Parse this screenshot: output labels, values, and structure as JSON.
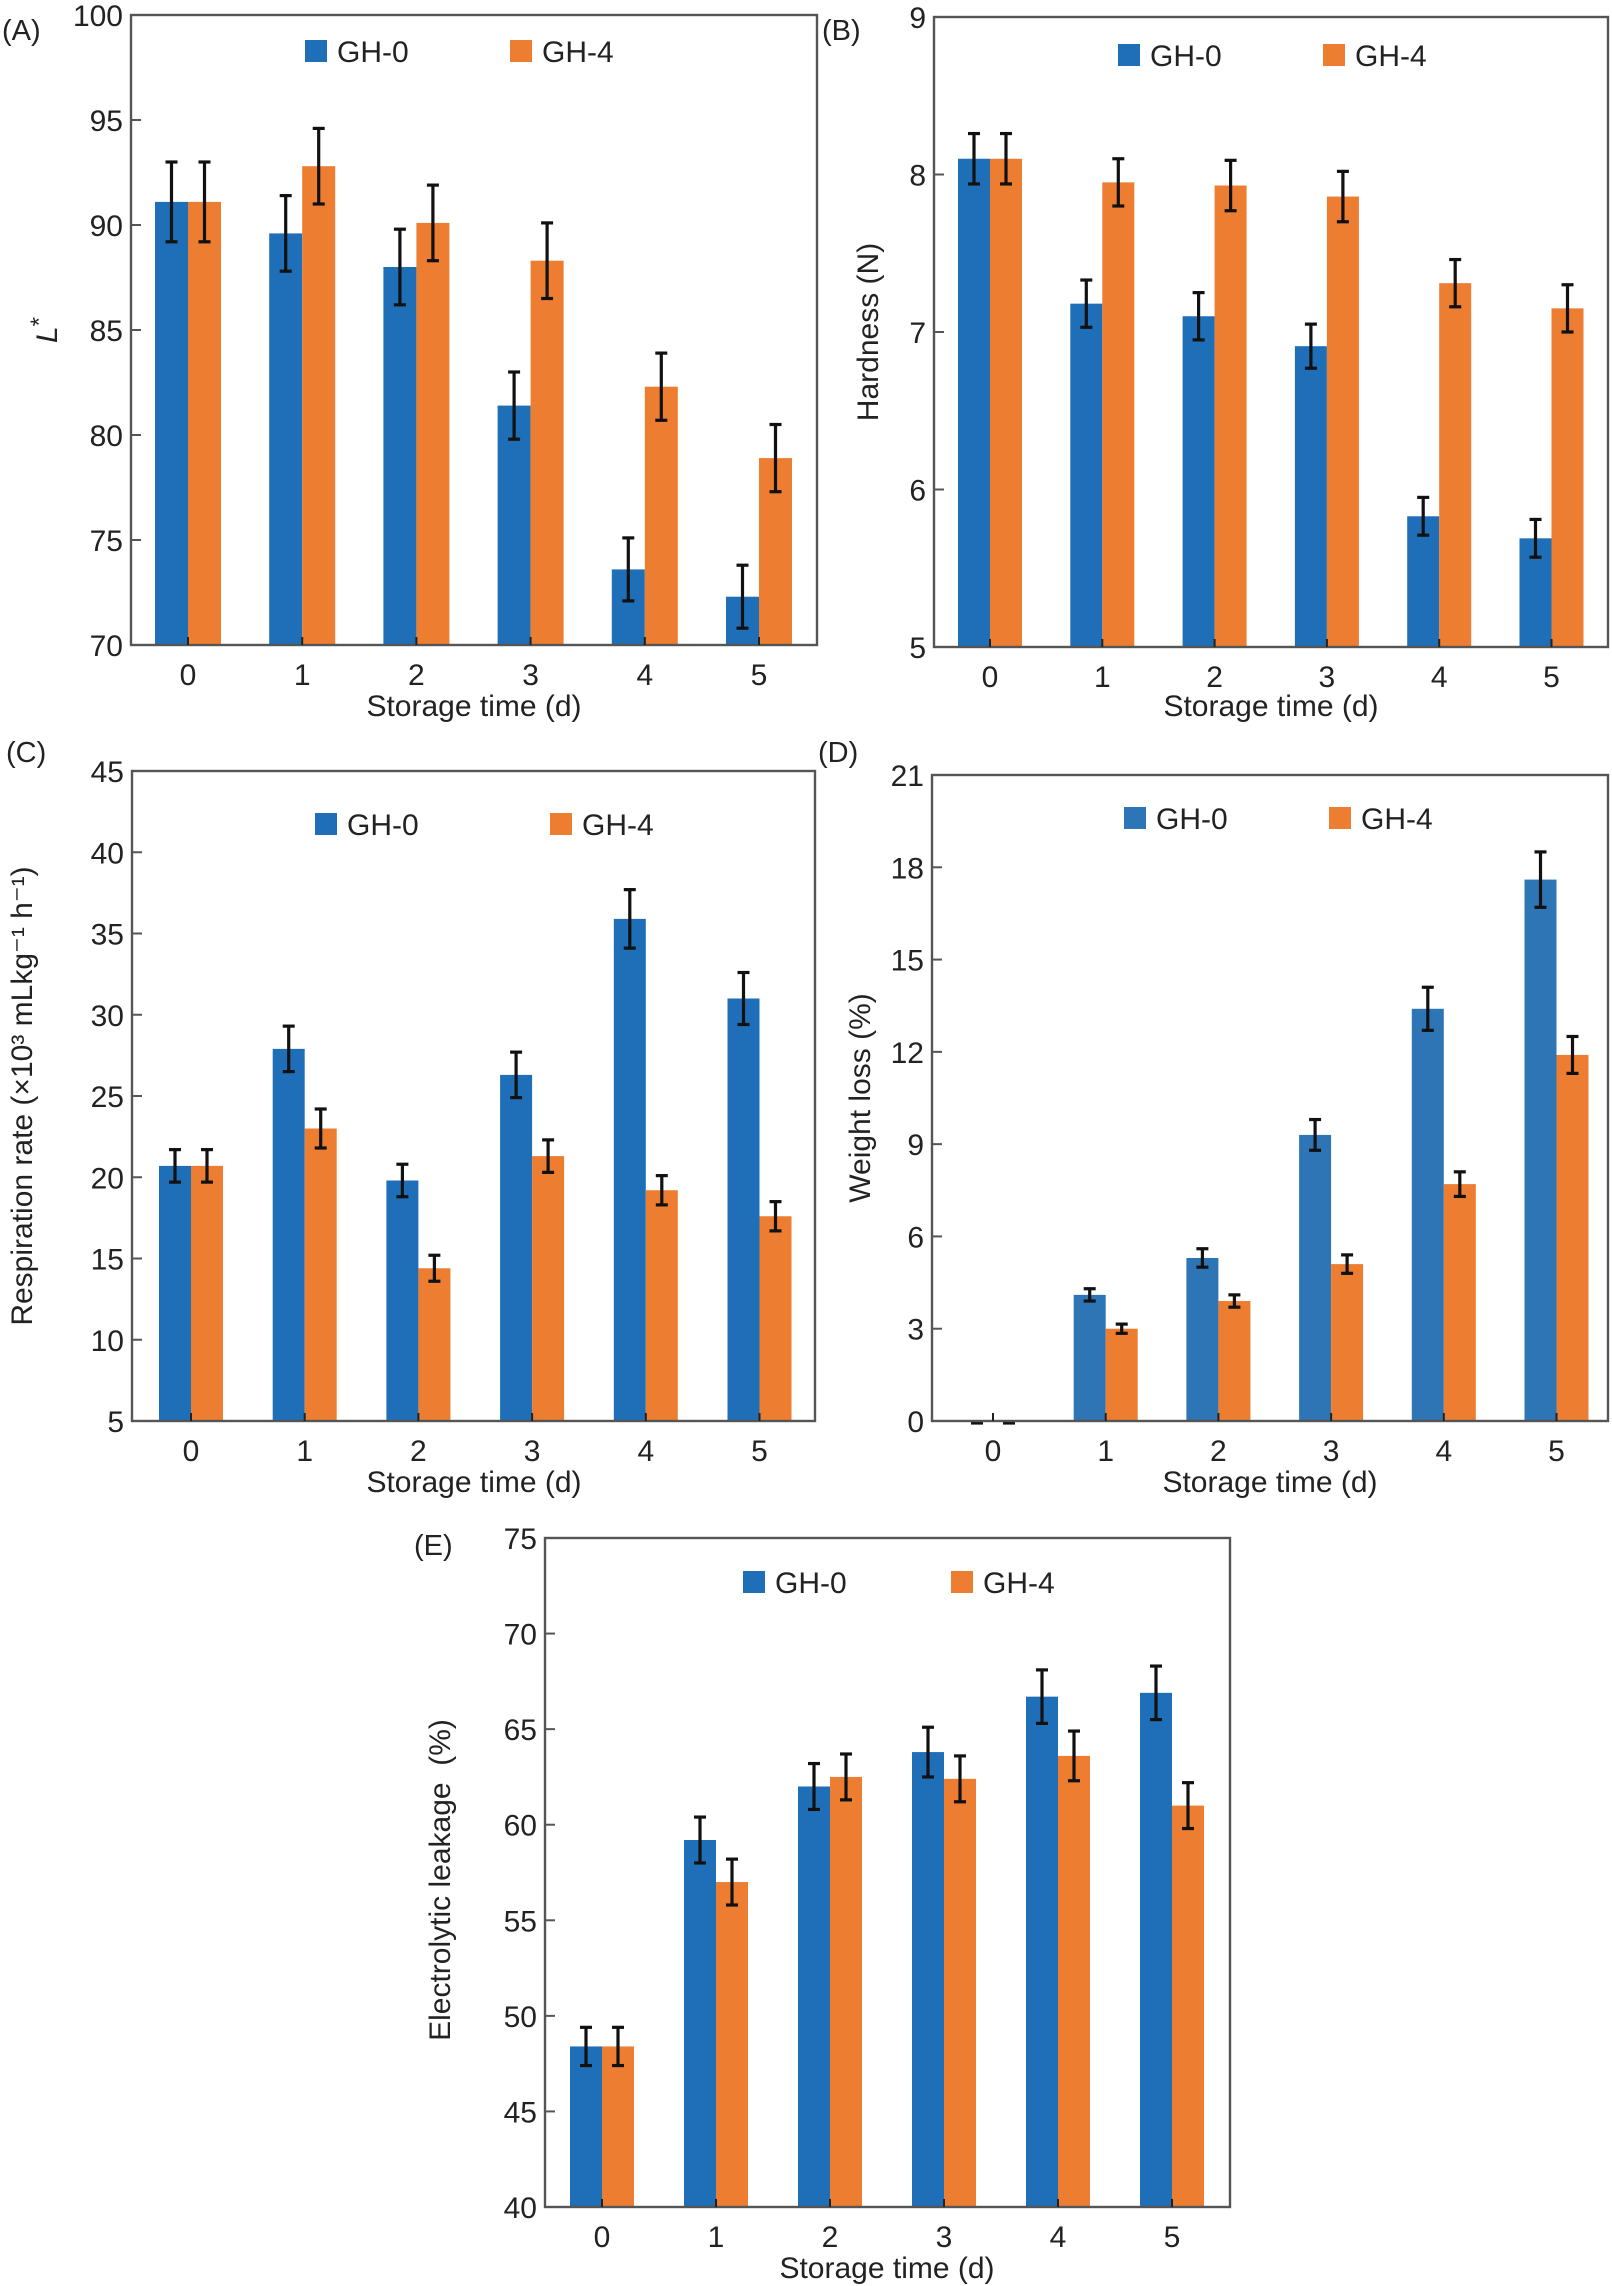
{
  "figure": {
    "colors": {
      "GH-0": "#1f6fb8",
      "GH-0_panelD": "#2e75b6",
      "GH-4": "#ed7d31",
      "frame": "#555555",
      "error_bar": "#111111"
    }
  },
  "chart_data": [
    {
      "panel": "(A)",
      "type": "bar",
      "title": "",
      "xlabel": "Storage time (d)",
      "ylabel": "L*",
      "ylabel_italic_part": "L",
      "ylabel_rest": "*",
      "categories": [
        "0",
        "1",
        "2",
        "3",
        "4",
        "5"
      ],
      "ylim": [
        70,
        100
      ],
      "yticks": [
        70,
        75,
        80,
        85,
        90,
        95,
        100
      ],
      "legend": {
        "placement": "top-center",
        "entries": [
          "GH-0",
          "GH-4"
        ]
      },
      "grid": false,
      "series": [
        {
          "name": "GH-0",
          "values": [
            91.1,
            89.6,
            88.0,
            81.4,
            73.6,
            72.3
          ],
          "errors": [
            1.9,
            1.8,
            1.8,
            1.6,
            1.5,
            1.5
          ]
        },
        {
          "name": "GH-4",
          "values": [
            91.1,
            92.8,
            90.1,
            88.3,
            82.3,
            78.9
          ],
          "errors": [
            1.9,
            1.8,
            1.8,
            1.8,
            1.6,
            1.6
          ]
        }
      ]
    },
    {
      "panel": "(B)",
      "type": "bar",
      "title": "",
      "xlabel": "Storage time (d)",
      "ylabel": "Hardness (N)",
      "categories": [
        "0",
        "1",
        "2",
        "3",
        "4",
        "5"
      ],
      "ylim": [
        5,
        9
      ],
      "yticks": [
        5,
        6,
        7,
        8,
        9
      ],
      "legend": {
        "placement": "top-center",
        "entries": [
          "GH-0",
          "GH-4"
        ]
      },
      "grid": false,
      "series": [
        {
          "name": "GH-0",
          "values": [
            8.1,
            7.18,
            7.1,
            6.91,
            5.83,
            5.69
          ],
          "errors": [
            0.16,
            0.15,
            0.15,
            0.14,
            0.12,
            0.12
          ]
        },
        {
          "name": "GH-4",
          "values": [
            8.1,
            7.95,
            7.93,
            7.86,
            7.31,
            7.15
          ],
          "errors": [
            0.16,
            0.15,
            0.16,
            0.16,
            0.15,
            0.15
          ]
        }
      ]
    },
    {
      "panel": "(C)",
      "type": "bar",
      "title": "",
      "xlabel": "Storage time (d)",
      "ylabel": "Respiration rate (×10³ mLkg⁻¹ h⁻¹)",
      "categories": [
        "0",
        "1",
        "2",
        "3",
        "4",
        "5"
      ],
      "ylim": [
        5,
        45
      ],
      "yticks": [
        5,
        10,
        15,
        20,
        25,
        30,
        35,
        40,
        45
      ],
      "legend": {
        "placement": "top-center",
        "entries": [
          "GH-0",
          "GH-4"
        ]
      },
      "grid": false,
      "series": [
        {
          "name": "GH-0",
          "values": [
            20.7,
            27.9,
            19.8,
            26.3,
            35.9,
            31.0
          ],
          "errors": [
            1.0,
            1.4,
            1.0,
            1.4,
            1.8,
            1.6
          ]
        },
        {
          "name": "GH-4",
          "values": [
            20.7,
            23.0,
            14.4,
            21.3,
            19.2,
            17.6
          ],
          "errors": [
            1.0,
            1.2,
            0.8,
            1.0,
            0.9,
            0.9
          ]
        }
      ]
    },
    {
      "panel": "(D)",
      "type": "bar",
      "title": "",
      "xlabel": "Storage time (d)",
      "ylabel": "Weight loss (%)",
      "categories": [
        "0",
        "1",
        "2",
        "3",
        "4",
        "5"
      ],
      "ylim": [
        0,
        21
      ],
      "yticks": [
        0,
        3,
        6,
        9,
        12,
        15,
        18,
        21
      ],
      "legend": {
        "placement": "top-center",
        "entries": [
          "GH-0",
          "GH-4"
        ]
      },
      "grid": false,
      "series": [
        {
          "name": "GH-0",
          "values": [
            0,
            4.1,
            5.3,
            9.3,
            13.4,
            17.6
          ],
          "errors": [
            0,
            0.2,
            0.3,
            0.5,
            0.7,
            0.9
          ]
        },
        {
          "name": "GH-4",
          "values": [
            0,
            3.0,
            3.9,
            5.1,
            7.7,
            11.9
          ],
          "errors": [
            0,
            0.15,
            0.2,
            0.3,
            0.4,
            0.6
          ]
        }
      ]
    },
    {
      "panel": "(E)",
      "type": "bar",
      "title": "",
      "xlabel": "Storage time (d)",
      "ylabel": "Electrolytic leakage  (%)",
      "categories": [
        "0",
        "1",
        "2",
        "3",
        "4",
        "5"
      ],
      "ylim": [
        40,
        75
      ],
      "yticks": [
        40,
        45,
        50,
        55,
        60,
        65,
        70,
        75
      ],
      "legend": {
        "placement": "top-center",
        "entries": [
          "GH-0",
          "GH-4"
        ]
      },
      "grid": false,
      "series": [
        {
          "name": "GH-0",
          "values": [
            48.4,
            59.2,
            62.0,
            63.8,
            66.7,
            66.9
          ],
          "errors": [
            1.0,
            1.2,
            1.2,
            1.3,
            1.4,
            1.4
          ]
        },
        {
          "name": "GH-4",
          "values": [
            48.4,
            57.0,
            62.5,
            62.4,
            63.6,
            61.0
          ],
          "errors": [
            1.0,
            1.2,
            1.2,
            1.2,
            1.3,
            1.2
          ]
        }
      ]
    }
  ]
}
